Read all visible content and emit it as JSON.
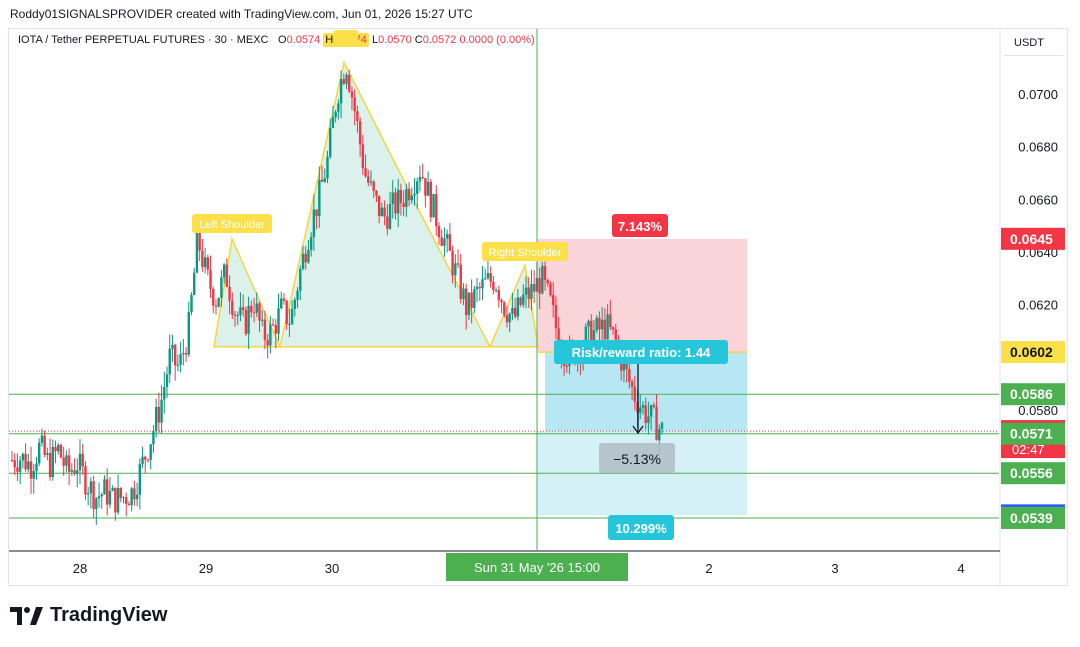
{
  "header": {
    "author_line": "Roddy01SIGNALSPROVIDER created with TradingView.com, Jun 01, 2026 15:27 UTC"
  },
  "symbol": {
    "name": "IOTA / Tether PERPETUAL FUTURES",
    "interval": "30",
    "exchange": "MEXC",
    "o_label": "O",
    "o_value": "0.0574",
    "h_label": "H",
    "h_value": "0.0574",
    "l_label": "L",
    "l_value": "0.0570",
    "c_label": "C",
    "c_value": "0.0572",
    "change": "0.0000 (0.00%)"
  },
  "price_axis": {
    "currency": "USDT",
    "ticks": [
      "0.0700",
      "0.0680",
      "0.0660",
      "0.0640",
      "0.0620",
      "0.0580"
    ],
    "badges": [
      {
        "value": "0.0645",
        "color": "#f23645",
        "text_color": "#ffffff"
      },
      {
        "value": "0.0602",
        "color": "#fbe04a",
        "text_color": "#131722"
      },
      {
        "value": "0.0586",
        "color": "#4caf50",
        "text_color": "#ffffff"
      },
      {
        "value": "0.0572",
        "color": "#f23645",
        "text_color": "#ffffff",
        "sub": "02:47"
      },
      {
        "value": "0.0571",
        "color": "#4caf50",
        "text_color": "#ffffff"
      },
      {
        "value": "0.0556",
        "color": "#4caf50",
        "text_color": "#ffffff"
      },
      {
        "value": "0.0540",
        "color": "#2962ff",
        "text_color": "#ffffff"
      },
      {
        "value": "0.0539",
        "color": "#4caf50",
        "text_color": "#ffffff"
      }
    ]
  },
  "time_axis": {
    "ticks": [
      "28",
      "29",
      "30",
      "2",
      "3",
      "4"
    ],
    "crosshair_label": "Sun 31 May '26   15:00"
  },
  "annotations": {
    "left_shoulder": "Left Shoulder",
    "right_shoulder": "Right Shoulder",
    "stop_pct": "7.143%",
    "rr_text": "Risk/reward ratio: 1.44",
    "measure_pct": "−5.13%",
    "target_pct": "10.299%"
  },
  "chart_data": {
    "type": "candlestick",
    "timeframe": "30",
    "x_ticks": [
      "28",
      "29",
      "30",
      "2",
      "3",
      "4"
    ],
    "ylim": [
      0.0531,
      0.0724
    ],
    "levels": {
      "stop_loss": 0.0645,
      "entry": 0.0602,
      "target": 0.054,
      "current": 0.0572,
      "neckline": 0.0604,
      "horizontals": [
        0.0586,
        0.0571,
        0.0556,
        0.0539
      ]
    },
    "head_and_shoulders": {
      "left_shoulder": 0.0645,
      "head": 0.0712,
      "right_shoulder": 0.0635,
      "neckline": 0.0604
    },
    "position": {
      "stop_pct": 7.143,
      "target_pct": 10.299,
      "risk_reward": 1.44
    },
    "close_path": [
      0.0561,
      0.0562,
      0.0559,
      0.0566,
      0.0559,
      0.0565,
      0.0556,
      0.056,
      0.0553,
      0.0547,
      0.0549,
      0.0546,
      0.0547,
      0.0549,
      0.0559,
      0.057,
      0.0582,
      0.06,
      0.0596,
      0.061,
      0.0645,
      0.063,
      0.0622,
      0.0632,
      0.0618,
      0.0612,
      0.0622,
      0.0608,
      0.061,
      0.0618,
      0.0614,
      0.0632,
      0.0648,
      0.066,
      0.0675,
      0.07,
      0.0712,
      0.0692,
      0.067,
      0.066,
      0.0653,
      0.0657,
      0.066,
      0.0666,
      0.0672,
      0.066,
      0.065,
      0.064,
      0.063,
      0.0618,
      0.0624,
      0.0628,
      0.063,
      0.062,
      0.0614,
      0.0622,
      0.0625,
      0.063,
      0.062,
      0.0605,
      0.06,
      0.0604,
      0.0608,
      0.061,
      0.0612,
      0.0606,
      0.0595,
      0.0586,
      0.058,
      0.0576,
      0.0572
    ]
  }
}
